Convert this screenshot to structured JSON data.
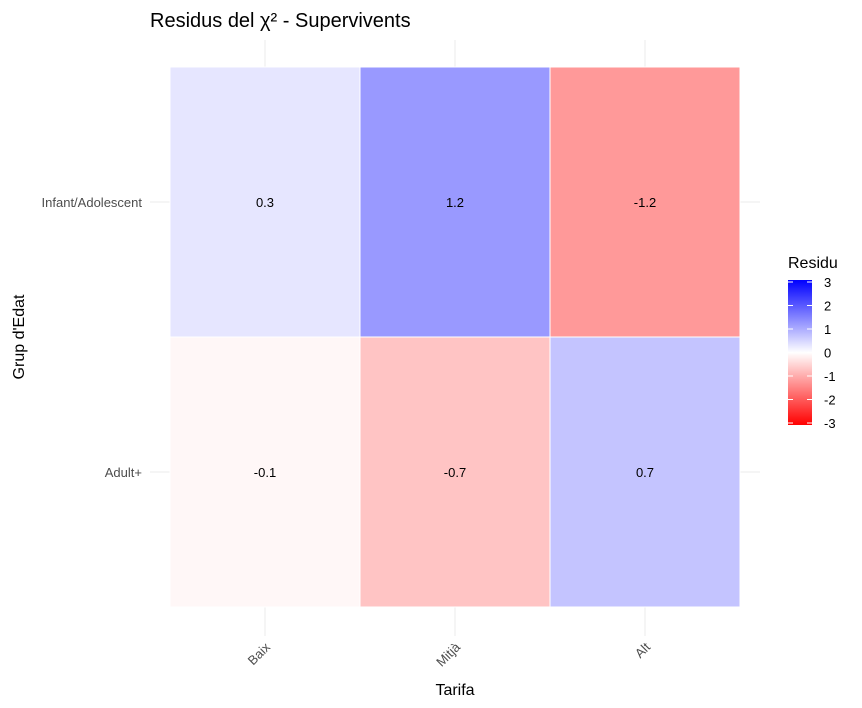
{
  "chart_data": {
    "type": "heatmap",
    "title": "Residus del χ² - Supervivents",
    "xlabel": "Tarifa",
    "ylabel": "Grup d'Edat",
    "x_categories": [
      "Baix",
      "Mitjà",
      "Alt"
    ],
    "y_categories": [
      "Infant/Adolescent",
      "Adult+"
    ],
    "cells": [
      {
        "x": "Baix",
        "y": "Infant/Adolescent",
        "value": 0.3,
        "label": "0.3"
      },
      {
        "x": "Mitjà",
        "y": "Infant/Adolescent",
        "value": 1.2,
        "label": "1.2"
      },
      {
        "x": "Alt",
        "y": "Infant/Adolescent",
        "value": -1.2,
        "label": "-1.2"
      },
      {
        "x": "Baix",
        "y": "Adult+",
        "value": -0.1,
        "label": "-0.1"
      },
      {
        "x": "Mitjà",
        "y": "Adult+",
        "value": -0.7,
        "label": "-0.7"
      },
      {
        "x": "Alt",
        "y": "Adult+",
        "value": 0.7,
        "label": "0.7"
      }
    ],
    "legend": {
      "title": "Residu",
      "placement": "right",
      "range": [
        -3,
        3
      ],
      "ticks": [
        "3",
        "2",
        "1",
        "0",
        "-1",
        "-2",
        "-3"
      ],
      "low_color": "#ff0000",
      "mid_color": "#ffffff",
      "high_color": "#0000ff"
    },
    "x_tick_rotation": 45,
    "grid": true
  }
}
